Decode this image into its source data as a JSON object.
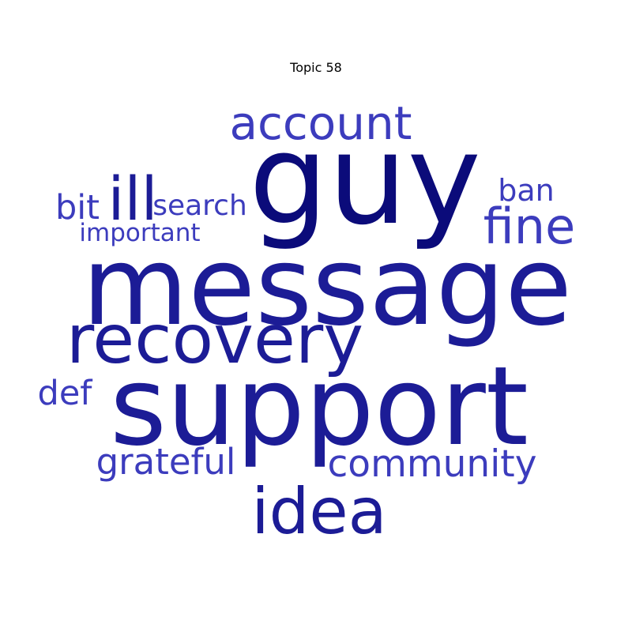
{
  "title": "Topic 58",
  "words": [
    {
      "text": "guy",
      "tier": "dark"
    },
    {
      "text": "message",
      "tier": "mid"
    },
    {
      "text": "support",
      "tier": "mid"
    },
    {
      "text": "recovery",
      "tier": "mid"
    },
    {
      "text": "account",
      "tier": "light"
    },
    {
      "text": "idea",
      "tier": "mid"
    },
    {
      "text": "fine",
      "tier": "light"
    },
    {
      "text": "ill",
      "tier": "mid"
    },
    {
      "text": "community",
      "tier": "light"
    },
    {
      "text": "grateful",
      "tier": "light"
    },
    {
      "text": "ban",
      "tier": "light"
    },
    {
      "text": "bit",
      "tier": "light"
    },
    {
      "text": "search",
      "tier": "light"
    },
    {
      "text": "def",
      "tier": "light"
    },
    {
      "text": "important",
      "tier": "light"
    }
  ],
  "colors": {
    "dark": "#0b0b7a",
    "mid": "#1c1c96",
    "light": "#3c3cbd"
  }
}
